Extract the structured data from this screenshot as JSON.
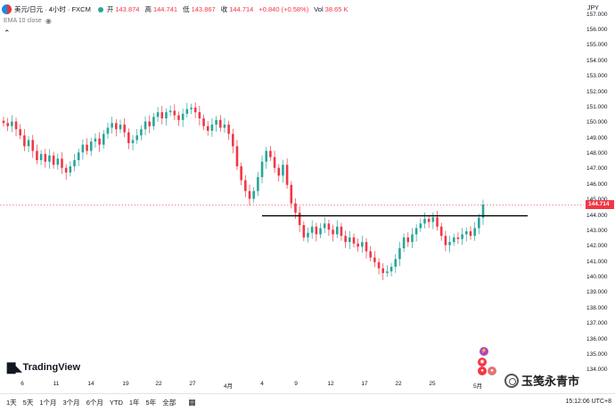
{
  "legend": {
    "symbol": "美元/日元 · 4小时 · FXCM",
    "open_label": "开",
    "open": "143.874",
    "high_label": "高",
    "high": "144.741",
    "low_label": "低",
    "low": "143.867",
    "close_label": "收",
    "close": "144.714",
    "change": "+0.840 (+0.58%)",
    "volume_label": "Vol",
    "volume": "38.65 K"
  },
  "indicator": {
    "label": "EMA 10 close"
  },
  "price_axis": {
    "currency": "JPY",
    "ticks": [
      "157.000",
      "156.000",
      "155.000",
      "154.000",
      "153.000",
      "152.000",
      "151.000",
      "150.000",
      "149.000",
      "148.000",
      "147.000",
      "146.000",
      "145.000",
      "144.000",
      "143.000",
      "142.000",
      "141.000",
      "140.000",
      "139.000",
      "138.000",
      "137.000",
      "136.000",
      "135.000",
      "134.000"
    ],
    "current_price": "144.714"
  },
  "time_axis": {
    "labels": [
      "6",
      "11",
      "14",
      "19",
      "22",
      "27",
      "4月",
      "4",
      "9",
      "12",
      "17",
      "22",
      "25",
      "5月"
    ]
  },
  "brand": {
    "name": "TradingView"
  },
  "bottom_bar": {
    "periods": [
      "1天",
      "5天",
      "1个月",
      "3个月",
      "6个月",
      "YTD",
      "1年",
      "5年",
      "全部"
    ],
    "clock": "15:12:06 UTC+8"
  },
  "watermark": {
    "text": "玉笺永青市"
  },
  "colors": {
    "up": "#26a69a",
    "down": "#f23645",
    "line": "#000000"
  },
  "chart_data": {
    "type": "candlestick",
    "ylim": [
      133.5,
      157.5
    ],
    "x_tick_labels": [
      "6",
      "11",
      "14",
      "19",
      "22",
      "27",
      "4月",
      "4",
      "9",
      "12",
      "17",
      "22",
      "25",
      "5月"
    ],
    "horizontal_line": 144.0,
    "last_price": 144.714,
    "closes": [
      150.0,
      149.8,
      150.1,
      149.6,
      149.2,
      148.5,
      148.9,
      148.2,
      147.6,
      148.0,
      147.5,
      147.9,
      147.3,
      147.7,
      147.1,
      146.8,
      147.2,
      147.6,
      148.1,
      148.6,
      148.2,
      148.8,
      149.0,
      148.6,
      149.3,
      149.7,
      150.0,
      149.6,
      149.9,
      149.4,
      148.7,
      148.9,
      149.2,
      149.6,
      150.1,
      149.8,
      150.4,
      150.7,
      150.3,
      150.7,
      150.8,
      150.5,
      150.2,
      150.6,
      150.9,
      151.0,
      150.7,
      150.3,
      149.8,
      149.5,
      149.9,
      150.2,
      149.7,
      149.9,
      149.3,
      148.5,
      147.2,
      146.3,
      145.6,
      145.1,
      145.6,
      146.5,
      147.5,
      148.2,
      147.8,
      147.1,
      146.6,
      147.3,
      146.0,
      144.8,
      144.2,
      143.4,
      142.6,
      142.9,
      143.3,
      142.8,
      143.2,
      143.5,
      143.1,
      142.8,
      143.3,
      142.7,
      142.3,
      142.6,
      142.2,
      142.0,
      142.3,
      141.7,
      141.3,
      141.0,
      140.6,
      140.3,
      140.4,
      140.7,
      141.2,
      141.9,
      142.6,
      142.3,
      142.8,
      143.2,
      143.5,
      143.8,
      143.6,
      143.9,
      143.3,
      142.7,
      142.1,
      142.3,
      142.6,
      142.5,
      142.8,
      143.0,
      142.7,
      143.2,
      143.874,
      144.714
    ]
  }
}
